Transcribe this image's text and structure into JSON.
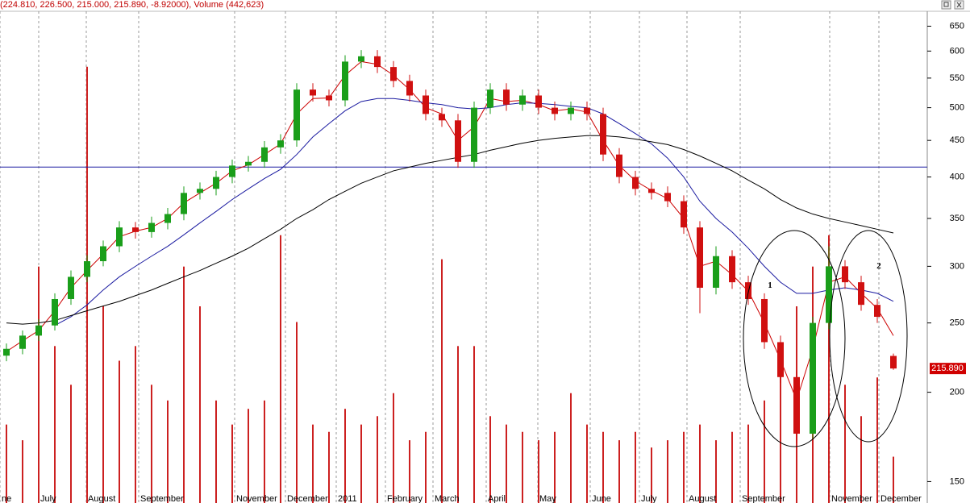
{
  "chart_data": {
    "type": "candlestick",
    "title": "(224.810, 226.500, 215.000, 215.890, -8.92000), Volume (442,623)",
    "log_scale": true,
    "grid": true,
    "x": [
      0,
      1,
      2,
      3,
      4,
      5,
      6,
      7,
      8,
      9,
      10,
      11,
      12,
      13,
      14,
      15,
      16,
      17,
      18,
      19,
      20,
      21,
      22,
      23,
      24,
      25,
      26,
      27,
      28,
      29,
      30,
      31,
      32,
      33,
      34,
      35,
      36,
      37,
      38,
      39,
      40,
      41,
      42,
      43,
      44,
      45,
      46,
      47,
      48,
      49,
      50,
      51,
      52,
      53,
      54,
      55
    ],
    "open": [
      225,
      230,
      240,
      248,
      270,
      290,
      305,
      320,
      340,
      335,
      345,
      355,
      380,
      385,
      400,
      415,
      420,
      440,
      450,
      530,
      520,
      512,
      580,
      590,
      570,
      545,
      520,
      490,
      480,
      420,
      500,
      530,
      505,
      520,
      500,
      490,
      500,
      490,
      430,
      400,
      385,
      380,
      370,
      340,
      280,
      310,
      285,
      270,
      235,
      210,
      175,
      250,
      300,
      285,
      265,
      224.81
    ],
    "high": [
      234,
      244,
      253,
      275,
      296,
      311,
      326,
      347,
      346,
      352,
      362,
      388,
      393,
      408,
      423,
      428,
      449,
      459,
      541,
      541,
      530,
      592,
      602,
      602,
      581,
      556,
      530,
      500,
      490,
      510,
      541,
      541,
      530,
      530,
      510,
      510,
      510,
      500,
      439,
      408,
      393,
      388,
      377,
      347,
      320,
      316,
      291,
      275,
      240,
      214,
      255,
      320,
      306,
      291,
      270,
      226.5
    ],
    "low": [
      221,
      226,
      236,
      244,
      265,
      285,
      300,
      314,
      328,
      329,
      338,
      348,
      372,
      377,
      392,
      407,
      412,
      431,
      441,
      510,
      502,
      502,
      568,
      559,
      534,
      510,
      480,
      470,
      412,
      412,
      490,
      495,
      495,
      490,
      480,
      480,
      480,
      421,
      392,
      377,
      372,
      363,
      333,
      258,
      274,
      279,
      265,
      230,
      206,
      170,
      172,
      245,
      279,
      260,
      250,
      215
    ],
    "close": [
      230,
      240,
      248,
      270,
      290,
      305,
      320,
      340,
      335,
      345,
      355,
      380,
      385,
      400,
      415,
      420,
      440,
      450,
      530,
      520,
      512,
      580,
      590,
      570,
      545,
      520,
      490,
      480,
      420,
      500,
      530,
      505,
      520,
      500,
      490,
      500,
      490,
      430,
      400,
      385,
      380,
      370,
      340,
      280,
      310,
      285,
      270,
      235,
      210,
      175,
      250,
      300,
      285,
      265,
      255,
      215.89
    ],
    "last_price_label": "215.890",
    "up_color": "#1a9e1a",
    "down_color": "#d01010",
    "volume": [
      750000,
      600000,
      2260000,
      1500000,
      1130000,
      4170000,
      1880000,
      1360000,
      1500000,
      1130000,
      980000,
      2260000,
      1880000,
      980000,
      750000,
      900000,
      980000,
      2560000,
      1730000,
      750000,
      680000,
      900000,
      750000,
      830000,
      1050000,
      600000,
      680000,
      2330000,
      1500000,
      1500000,
      830000,
      750000,
      680000,
      600000,
      680000,
      1050000,
      750000,
      680000,
      600000,
      680000,
      530000,
      600000,
      680000,
      750000,
      600000,
      680000,
      750000,
      980000,
      1500000,
      1880000,
      2260000,
      2560000,
      1130000,
      830000,
      1200000,
      442623
    ],
    "volume_color": "#cc2020",
    "y2lim": [
      0,
      4700000
    ],
    "series": [
      {
        "color": "#cc0000",
        "values": [
          228,
          236,
          244,
          260,
          280,
          296,
          312,
          330,
          336,
          340,
          350,
          368,
          380,
          392,
          408,
          416,
          430,
          445,
          490,
          515,
          516,
          555,
          580,
          575,
          555,
          530,
          500,
          490,
          450,
          470,
          515,
          510,
          512,
          505,
          495,
          498,
          493,
          450,
          415,
          395,
          383,
          373,
          350,
          300,
          305,
          292,
          277,
          250,
          222,
          195,
          230,
          285,
          290,
          275,
          262,
          240
        ]
      },
      {
        "color": "#1a1aa0",
        "values": [
          null,
          null,
          null,
          248,
          255,
          265,
          278,
          290,
          300,
          310,
          320,
          332,
          345,
          358,
          372,
          385,
          398,
          410,
          430,
          455,
          475,
          495,
          510,
          515,
          515,
          512,
          508,
          505,
          500,
          498,
          500,
          505,
          508,
          507,
          505,
          502,
          500,
          490,
          475,
          460,
          445,
          425,
          400,
          370,
          350,
          335,
          318,
          300,
          285,
          275,
          275,
          278,
          280,
          278,
          275,
          268
        ]
      },
      {
        "color": "#000000",
        "values": [
          250,
          249,
          250,
          252,
          256,
          260,
          264,
          268,
          273,
          278,
          284,
          290,
          296,
          303,
          310,
          318,
          328,
          338,
          350,
          360,
          372,
          382,
          392,
          400,
          408,
          413,
          418,
          422,
          426,
          430,
          436,
          441,
          446,
          450,
          453,
          455,
          457,
          457,
          455,
          452,
          448,
          444,
          437,
          428,
          418,
          408,
          396,
          385,
          372,
          362,
          355,
          350,
          346,
          342,
          338,
          334
        ]
      }
    ],
    "hline": {
      "value": 413,
      "color": "#1a1aa0"
    },
    "xlim": [
      -0.4,
      57.1
    ],
    "xticks": [
      {
        "value": -0.4,
        "label": "ne"
      },
      {
        "value": 2,
        "label": "July"
      },
      {
        "value": 4.95,
        "label": "August"
      },
      {
        "value": 8.2,
        "label": "September"
      },
      {
        "value": 14.15,
        "label": "November"
      },
      {
        "value": 17.3,
        "label": "December"
      },
      {
        "value": 20.45,
        "label": "2011"
      },
      {
        "value": 23.5,
        "label": "February"
      },
      {
        "value": 26.45,
        "label": "March"
      },
      {
        "value": 29.75,
        "label": "April"
      },
      {
        "value": 32.95,
        "label": "May"
      },
      {
        "value": 36.2,
        "label": "June"
      },
      {
        "value": 39.25,
        "label": "July"
      },
      {
        "value": 42.2,
        "label": "August"
      },
      {
        "value": 45.5,
        "label": "September"
      },
      {
        "value": 51.05,
        "label": "November"
      },
      {
        "value": 54.1,
        "label": "December"
      }
    ],
    "ylim": [
      140,
      682
    ],
    "yticks": [
      150,
      200,
      250,
      300,
      350,
      400,
      450,
      500,
      550,
      600,
      650
    ],
    "annotations": [
      {
        "text": "1",
        "x": 47.35,
        "y": 282
      },
      {
        "text": "2",
        "x": 54.1,
        "y": 300
      }
    ]
  }
}
